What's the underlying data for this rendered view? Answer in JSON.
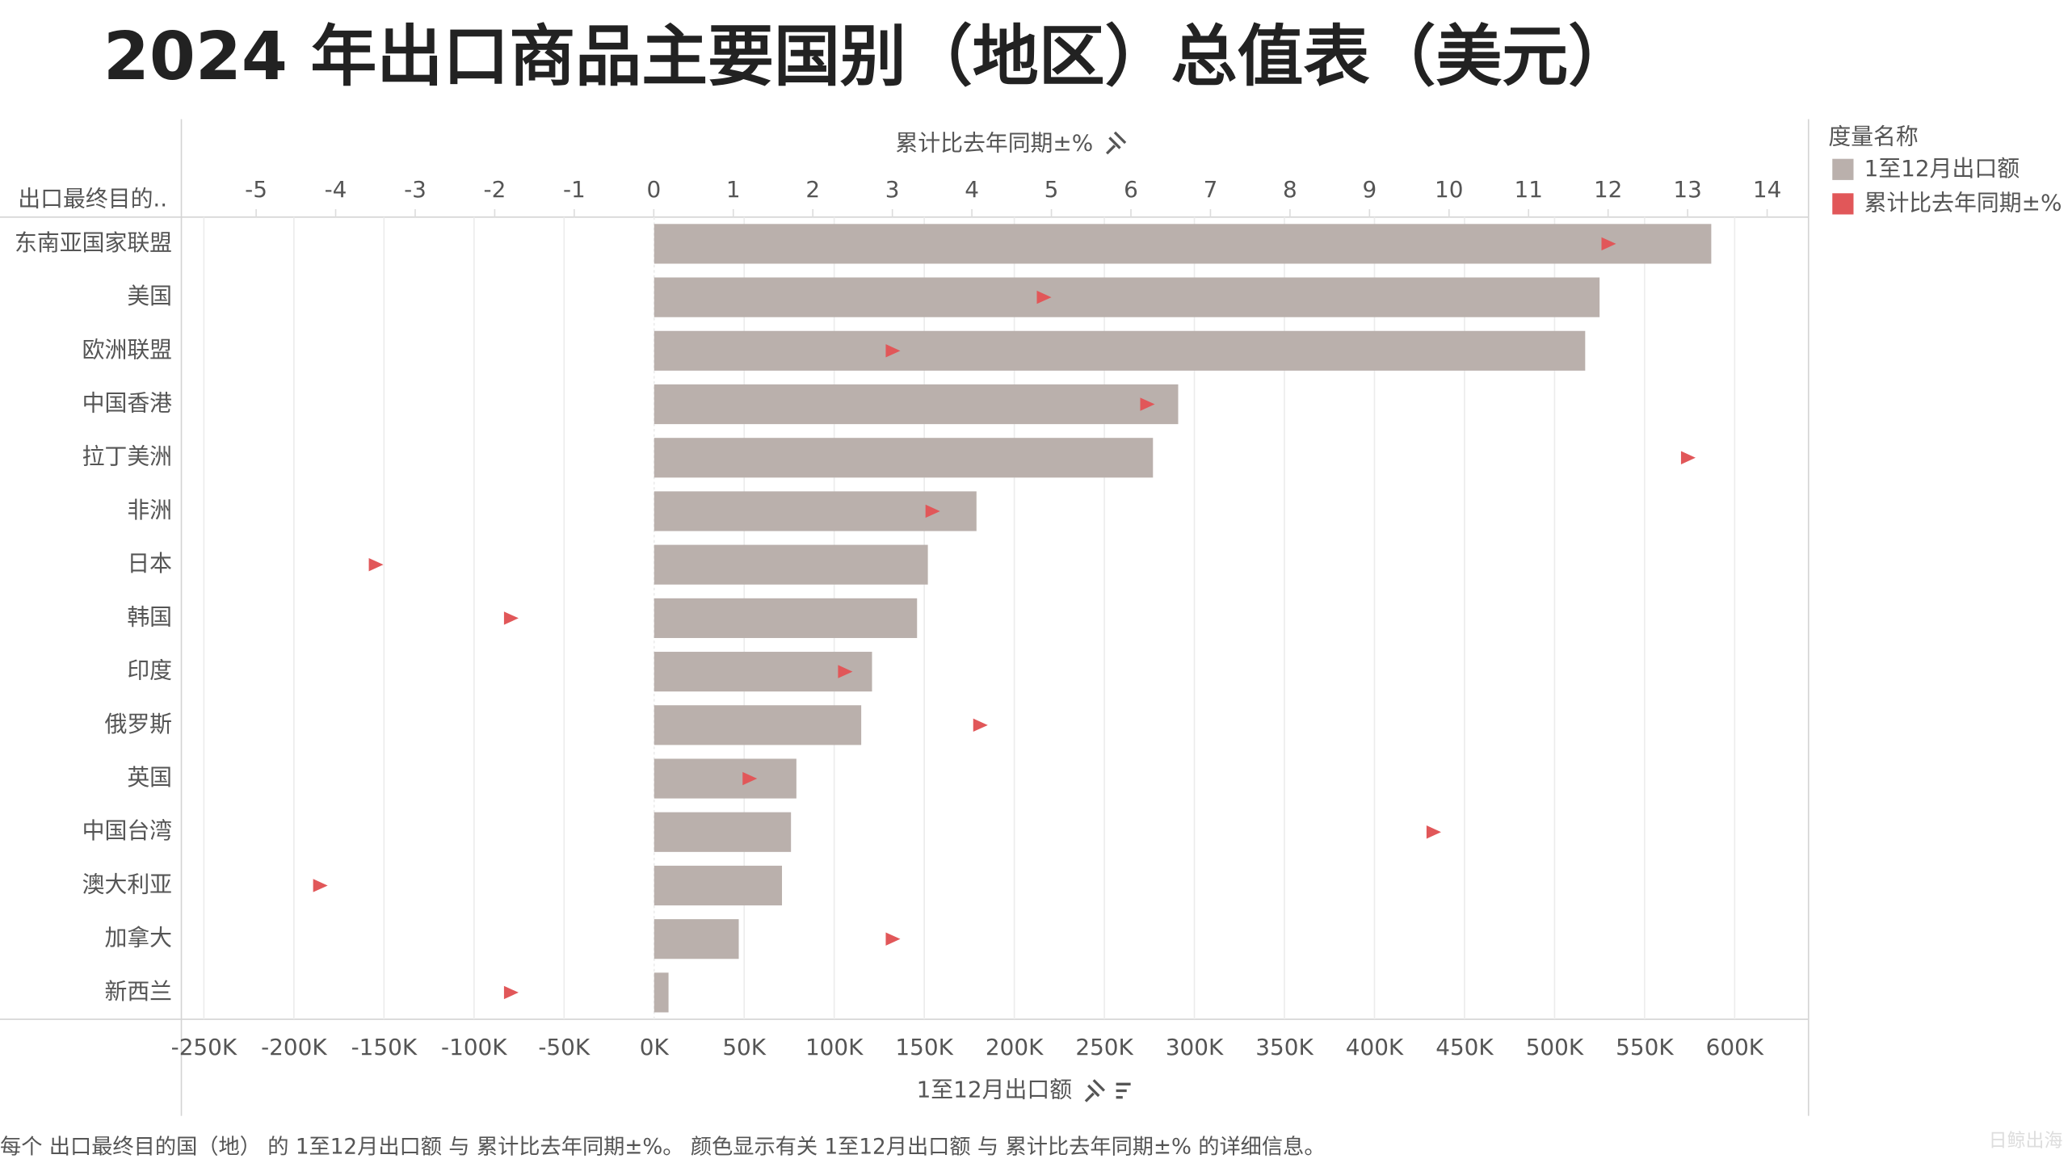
{
  "chart_data": {
    "type": "bar",
    "title": "2024 年出口商品主要国别（地区）总值表（美元）",
    "row_header": "出口最终目的..",
    "x_label": "1至12月出口额",
    "x2_label": "累计比去年同期±%",
    "legend_title": "度量名称",
    "caption": "每个 出口最终目的国（地） 的 1至12月出口额 与 累计比去年同期±%。 颜色显示有关 1至12月出口额 与 累计比去年同期±% 的详细信息。",
    "watermark": "日鲸出海",
    "categories": [
      "东南亚国家联盟",
      "美国",
      "欧洲联盟",
      "中国香港",
      "拉丁美洲",
      "非洲",
      "日本",
      "韩国",
      "印度",
      "俄罗斯",
      "英国",
      "中国台湾",
      "澳大利亚",
      "加拿大",
      "新西兰"
    ],
    "series": [
      {
        "name": "1至12月出口额",
        "color": "#bab0ac",
        "values": [
          587000,
          525000,
          517000,
          291000,
          277000,
          179000,
          152000,
          146000,
          121000,
          115000,
          79000,
          76000,
          71000,
          47000,
          8000
        ]
      },
      {
        "name": "累计比去年同期±%",
        "color": "#e15759",
        "axis": "x2",
        "type": "scatter",
        "values": [
          12.0,
          4.9,
          3.0,
          6.2,
          13.0,
          3.5,
          -3.5,
          -1.8,
          2.4,
          4.1,
          1.2,
          9.8,
          -4.2,
          3.0,
          -1.8
        ]
      }
    ],
    "xlim": [
      -262500,
      641000
    ],
    "xticks": [
      {
        "value": -250000,
        "label": "-250K"
      },
      {
        "value": -200000,
        "label": "-200K"
      },
      {
        "value": -150000,
        "label": "-150K"
      },
      {
        "value": -100000,
        "label": "-100K"
      },
      {
        "value": -50000,
        "label": "-50K"
      },
      {
        "value": 0,
        "label": "0K"
      },
      {
        "value": 50000,
        "label": "50K"
      },
      {
        "value": 100000,
        "label": "100K"
      },
      {
        "value": 150000,
        "label": "150K"
      },
      {
        "value": 200000,
        "label": "200K"
      },
      {
        "value": 250000,
        "label": "250K"
      },
      {
        "value": 300000,
        "label": "300K"
      },
      {
        "value": 350000,
        "label": "350K"
      },
      {
        "value": 400000,
        "label": "400K"
      },
      {
        "value": 450000,
        "label": "450K"
      },
      {
        "value": 500000,
        "label": "500K"
      },
      {
        "value": 550000,
        "label": "550K"
      },
      {
        "value": 600000,
        "label": "600K"
      }
    ],
    "x2lim": [
      -5.94,
      14.52
    ],
    "x2ticks": [
      -5,
      -4,
      -3,
      -2,
      -1,
      0,
      1,
      2,
      3,
      4,
      5,
      6,
      7,
      8,
      9,
      10,
      11,
      12,
      13,
      14
    ],
    "grid": true
  }
}
